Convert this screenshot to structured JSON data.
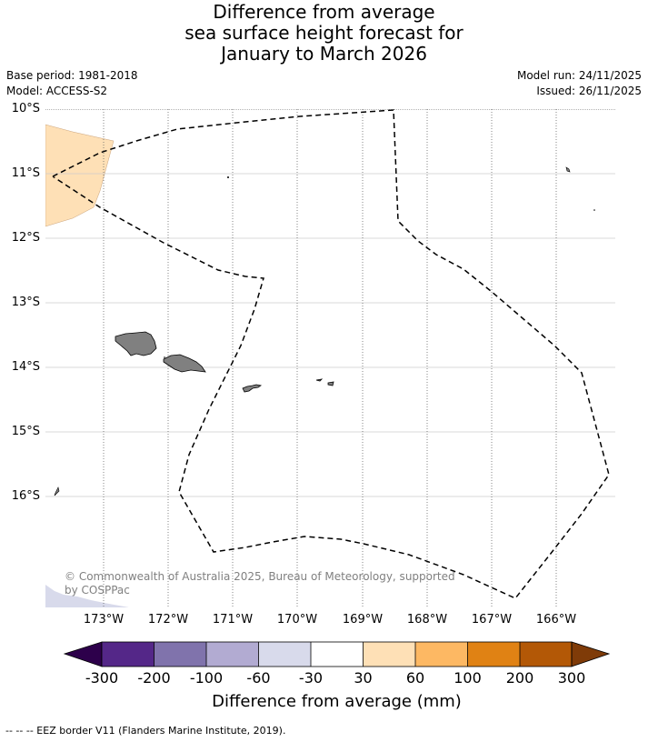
{
  "title_lines": [
    "Difference from average",
    "sea surface height forecast for",
    "January to March 2026"
  ],
  "meta": {
    "base_period": "Base period: 1981-2018",
    "model": "Model: ACCESS-S2",
    "model_run": "Model run: 24/11/2025",
    "issued": "Issued: 26/11/2025"
  },
  "map": {
    "lat_labels": [
      "10°S",
      "11°S",
      "12°S",
      "13°S",
      "14°S",
      "15°S",
      "16°S"
    ],
    "lon_labels": [
      "173°W",
      "172°W",
      "171°W",
      "170°W",
      "169°W",
      "168°W",
      "167°W",
      "166°W"
    ],
    "credit": "© Commonwealth of Australia 2025, Bureau of Meteorology, supported by COSPPac",
    "land_color": "#808080",
    "anomaly_color": "#fee0b6"
  },
  "colorbar": {
    "ticks": [
      "-300",
      "-200",
      "-100",
      "-60",
      "-30",
      "30",
      "60",
      "100",
      "200",
      "300"
    ],
    "colors": [
      "#2d004b",
      "#542788",
      "#8073ac",
      "#b2abd2",
      "#d8daeb",
      "#ffffff",
      "#fee0b6",
      "#fdb863",
      "#e08214",
      "#b35806",
      "#7f3b08"
    ],
    "label": "Difference from average (mm)"
  },
  "footer": "--  --  -- EEZ border V11 (Flanders Marine Institute, 2019)."
}
